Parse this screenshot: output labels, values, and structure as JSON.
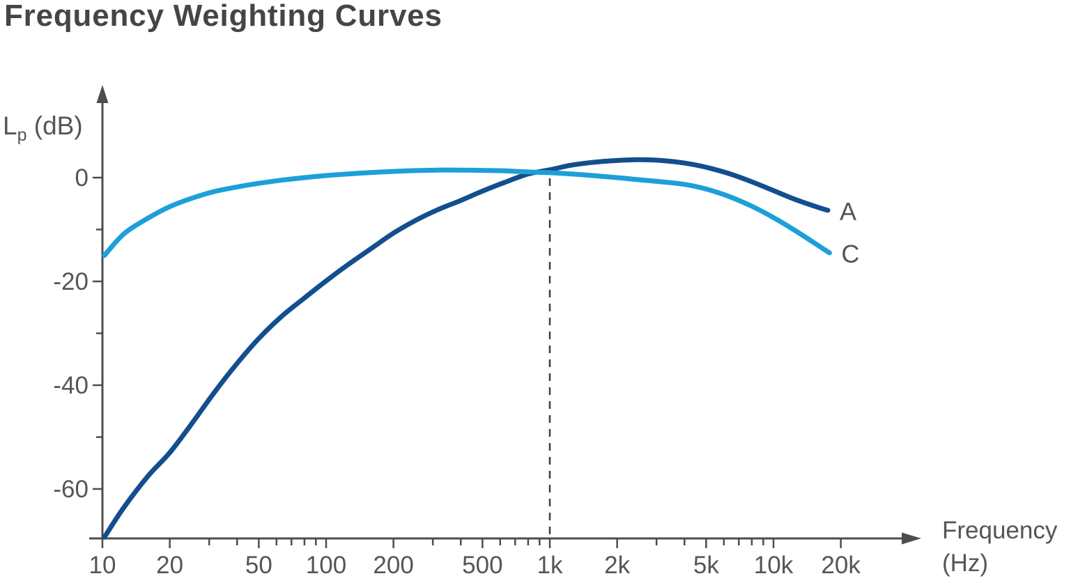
{
  "title": "Frequency Weighting Curves",
  "y_axis": {
    "label_main": "L",
    "label_sub": "p",
    "label_unit": " (dB)"
  },
  "x_axis": {
    "label_line1": "Frequency",
    "label_line2": "(Hz)"
  },
  "colors": {
    "curve_a": "#134e8e",
    "curve_c": "#1d9fd9",
    "axis": "#4d4d4f",
    "text": "#555558",
    "dashed_line": "#3e3e40"
  },
  "chart_data": {
    "type": "line",
    "title": "Frequency Weighting Curves",
    "xlabel": "Frequency (Hz)",
    "ylabel": "Lp (dB)",
    "x_scale": "log",
    "xlim": [
      10,
      23000
    ],
    "ylim": [
      -70,
      16
    ],
    "grid": false,
    "legend_position": "right-of-curve-ends",
    "x_ticks_major": [
      {
        "f": 10,
        "label": "10"
      },
      {
        "f": 20,
        "label": "20"
      },
      {
        "f": 50,
        "label": "50"
      },
      {
        "f": 100,
        "label": "100"
      },
      {
        "f": 200,
        "label": "200"
      },
      {
        "f": 500,
        "label": "500"
      },
      {
        "f": 1000,
        "label": "1k"
      },
      {
        "f": 2000,
        "label": "2k"
      },
      {
        "f": 5000,
        "label": "5k"
      },
      {
        "f": 10000,
        "label": "10k"
      },
      {
        "f": 20000,
        "label": "20k"
      }
    ],
    "x_ticks_minor": [
      30,
      40,
      60,
      70,
      80,
      90,
      300,
      400,
      600,
      700,
      800,
      900,
      3000,
      4000,
      6000,
      7000,
      8000,
      9000
    ],
    "y_ticks_major": [
      0,
      -20,
      -40,
      -60
    ],
    "y_ticks_minor": [
      -10,
      -30,
      -50
    ],
    "reference_line_hz": 1000,
    "series": [
      {
        "name": "A",
        "color": "#134e8e",
        "points": [
          [
            10.2,
            -69.3
          ],
          [
            12.5,
            -63.5
          ],
          [
            16,
            -57.5
          ],
          [
            20,
            -53
          ],
          [
            25,
            -47.5
          ],
          [
            31.5,
            -41.5
          ],
          [
            40,
            -35.8
          ],
          [
            50,
            -31
          ],
          [
            63,
            -26.8
          ],
          [
            80,
            -23.2
          ],
          [
            100,
            -19.9
          ],
          [
            125,
            -16.8
          ],
          [
            160,
            -13.6
          ],
          [
            200,
            -10.7
          ],
          [
            250,
            -8.3
          ],
          [
            315,
            -6.2
          ],
          [
            400,
            -4.4
          ],
          [
            500,
            -2.6
          ],
          [
            630,
            -0.9
          ],
          [
            800,
            0.7
          ],
          [
            1000,
            1.5
          ],
          [
            1250,
            2.4
          ],
          [
            1600,
            3.0
          ],
          [
            2000,
            3.3
          ],
          [
            2500,
            3.45
          ],
          [
            3150,
            3.3
          ],
          [
            4000,
            2.8
          ],
          [
            5000,
            2.0
          ],
          [
            6300,
            0.8
          ],
          [
            8000,
            -0.8
          ],
          [
            10000,
            -2.5
          ],
          [
            12500,
            -4.2
          ],
          [
            16000,
            -5.8
          ],
          [
            17500,
            -6.3
          ]
        ]
      },
      {
        "name": "C",
        "color": "#1d9fd9",
        "points": [
          [
            10.2,
            -15.0
          ],
          [
            12.5,
            -10.8
          ],
          [
            16,
            -7.8
          ],
          [
            20,
            -5.6
          ],
          [
            25,
            -4.0
          ],
          [
            31.5,
            -2.7
          ],
          [
            40,
            -1.8
          ],
          [
            50,
            -1.1
          ],
          [
            63,
            -0.5
          ],
          [
            80,
            0.0
          ],
          [
            100,
            0.4
          ],
          [
            125,
            0.7
          ],
          [
            160,
            1.0
          ],
          [
            200,
            1.2
          ],
          [
            250,
            1.35
          ],
          [
            315,
            1.45
          ],
          [
            400,
            1.45
          ],
          [
            500,
            1.4
          ],
          [
            630,
            1.3
          ],
          [
            800,
            1.1
          ],
          [
            1000,
            0.95
          ],
          [
            1250,
            0.7
          ],
          [
            1600,
            0.35
          ],
          [
            2000,
            0.0
          ],
          [
            2500,
            -0.4
          ],
          [
            3150,
            -0.8
          ],
          [
            4000,
            -1.3
          ],
          [
            5000,
            -2.2
          ],
          [
            6300,
            -3.6
          ],
          [
            8000,
            -5.5
          ],
          [
            10000,
            -7.7
          ],
          [
            12500,
            -10.2
          ],
          [
            16000,
            -13.2
          ],
          [
            17800,
            -14.5
          ]
        ]
      }
    ]
  }
}
